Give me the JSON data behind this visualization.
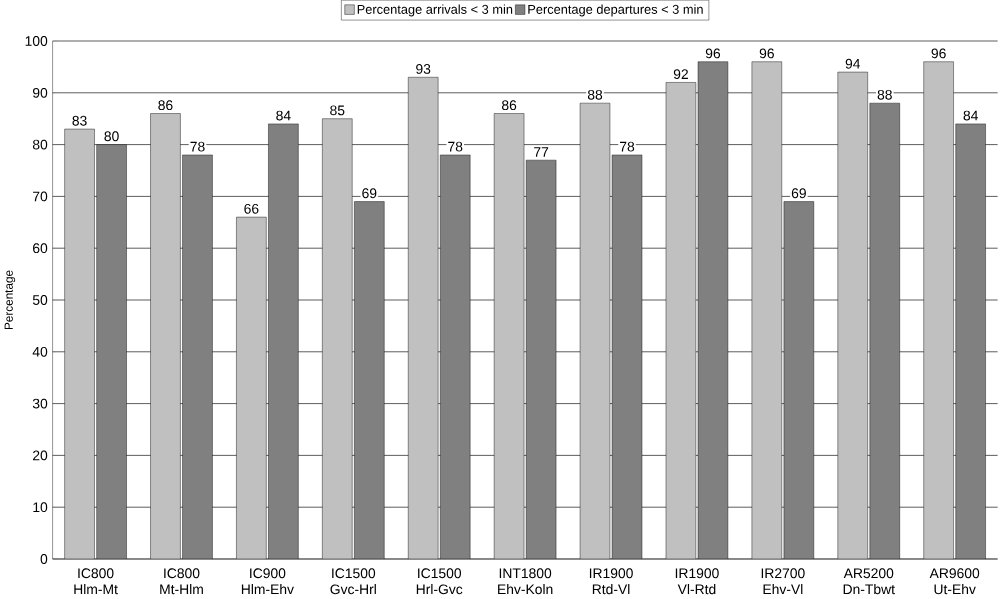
{
  "chart_data": {
    "type": "bar",
    "ylabel": "Percentage",
    "categories": [
      "IC800 Hlm-Mt",
      "IC800 Mt-Hlm",
      "IC900 Hlm-Ehv",
      "IC1500 Gvc-Hrl",
      "IC1500 Hrl-Gvc",
      "INT1800 Ehv-Koln",
      "IR1900 Rtd-Vl",
      "IR1900 Vl-Rtd",
      "IR2700 Ehv-Vl",
      "AR5200 Dn-Tbwt",
      "AR9600 Ut-Ehv"
    ],
    "series": [
      {
        "name": "Percentage arrivals < 3 min",
        "color": "#c0c0c0",
        "values": [
          83,
          86,
          66,
          85,
          93,
          86,
          88,
          92,
          96,
          94,
          96
        ]
      },
      {
        "name": "Percentage departures < 3 min",
        "color": "#808080",
        "values": [
          80,
          78,
          84,
          69,
          78,
          77,
          78,
          96,
          69,
          88,
          84
        ]
      }
    ],
    "ylim": [
      0,
      100
    ],
    "yticks": [
      0,
      10,
      20,
      30,
      40,
      50,
      60,
      70,
      80,
      90,
      100
    ],
    "grid": "y",
    "legend": "top",
    "data_labels": true
  }
}
